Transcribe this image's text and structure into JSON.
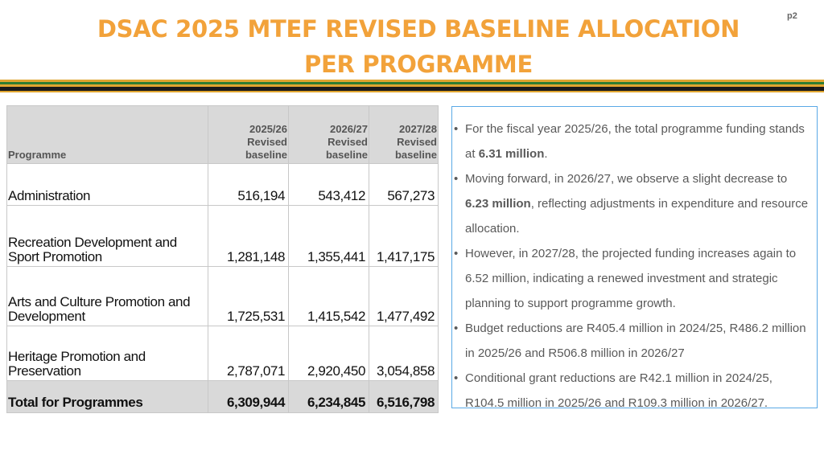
{
  "title_line1": "DSAC 2025 MTEF REVISED BASELINE ALLOCATION",
  "title_line2": "PER PROGRAMME",
  "page_number": "p2",
  "table": {
    "headers": {
      "programme": "Programme",
      "col1": [
        "2025/26",
        "Revised",
        "baseline"
      ],
      "col2": [
        "2026/27",
        "Revised",
        "baseline"
      ],
      "col3": [
        "2027/28",
        "Revised",
        "baseline"
      ]
    },
    "rows": [
      {
        "programme": "Administration",
        "y2025": "516,194",
        "y2026": "543,412",
        "y2027": "567,273"
      },
      {
        "programme": "Recreation Development and Sport Promotion",
        "y2025": "1,281,148",
        "y2026": "1,355,441",
        "y2027": "1,417,175"
      },
      {
        "programme": "Arts and Culture Promotion and Development",
        "y2025": "1,725,531",
        "y2026": "1,415,542",
        "y2027": "1,477,492"
      },
      {
        "programme": "Heritage Promotion and Preservation",
        "y2025": "2,787,071",
        "y2026": "2,920,450",
        "y2027": "3,054,858"
      }
    ],
    "total": {
      "programme": "Total for Programmes",
      "y2025": "6,309,944",
      "y2026": "6,234,845",
      "y2027": "6,516,798"
    }
  },
  "notes": {
    "b1": {
      "pre": "For the fiscal year 2025/26, the total programme funding stands at ",
      "bold": "6.31 million",
      "post": "."
    },
    "b2": {
      "pre": "Moving forward, in 2026/27, we observe a slight decrease to ",
      "bold": "6.23 million",
      "post": ", reflecting adjustments in expenditure and resource allocation."
    },
    "b3": "However, in 2027/28, the projected funding increases again to 6.52 million, indicating a renewed investment and strategic planning to support programme growth.",
    "b4": "Budget reductions are R405.4 million in 2024/25, R486.2 million in 2025/26 and R506.8 million in 2026/27",
    "b5": "Conditional grant reductions are R42.1 million in 2024/25, R104.5 million in 2025/26 and R109.3 million in 2026/27."
  },
  "colors": {
    "title": "#f2a23a",
    "band_gold": "#e0a530",
    "band_green": "#2e7d32",
    "header_bg": "#d9d9d9",
    "notes_border": "#5aa9e6"
  }
}
